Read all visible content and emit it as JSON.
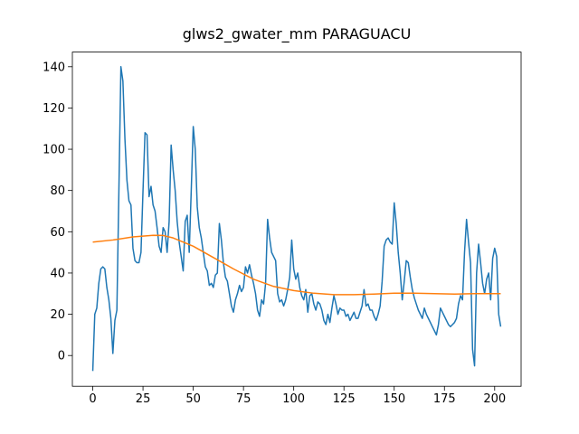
{
  "chart_data": {
    "type": "line",
    "title": "glws2_gwater_mm PARAGUACU",
    "xlim": [
      -10.15,
      213.15
    ],
    "xticks": [
      0,
      25,
      50,
      75,
      100,
      125,
      150,
      175,
      200
    ],
    "ylim": [
      -14.9,
      147.1
    ],
    "yticks": [
      0,
      20,
      40,
      60,
      80,
      100,
      120,
      140
    ],
    "series": [
      {
        "color": "#1f77b4",
        "x": [
          0,
          1,
          2,
          3,
          4,
          5,
          6,
          7,
          8,
          9,
          10,
          11,
          12,
          13,
          14,
          15,
          16,
          17,
          18,
          19,
          20,
          21,
          22,
          23,
          24,
          25,
          26,
          27,
          28,
          29,
          30,
          31,
          32,
          33,
          34,
          35,
          36,
          37,
          38,
          39,
          40,
          41,
          42,
          43,
          44,
          45,
          46,
          47,
          48,
          49,
          50,
          51,
          52,
          53,
          54,
          55,
          56,
          57,
          58,
          59,
          60,
          61,
          62,
          63,
          64,
          65,
          66,
          67,
          68,
          69,
          70,
          71,
          72,
          73,
          74,
          75,
          76,
          77,
          78,
          79,
          80,
          81,
          82,
          83,
          84,
          85,
          86,
          87,
          88,
          89,
          90,
          91,
          92,
          93,
          94,
          95,
          96,
          97,
          98,
          99,
          100,
          101,
          102,
          103,
          104,
          105,
          106,
          107,
          108,
          109,
          110,
          111,
          112,
          113,
          114,
          115,
          116,
          117,
          118,
          119,
          120,
          121,
          122,
          123,
          124,
          125,
          126,
          127,
          128,
          129,
          130,
          131,
          132,
          133,
          134,
          135,
          136,
          137,
          138,
          139,
          140,
          141,
          142,
          143,
          144,
          145,
          146,
          147,
          148,
          149,
          150,
          151,
          152,
          153,
          154,
          155,
          156,
          157,
          158,
          159,
          160,
          161,
          162,
          163,
          164,
          165,
          166,
          167,
          168,
          169,
          170,
          171,
          172,
          173,
          174,
          175,
          176,
          177,
          178,
          179,
          180,
          181,
          182,
          183,
          184,
          185,
          186,
          187,
          188,
          189,
          190,
          191,
          192,
          193,
          194,
          195,
          196,
          197,
          198,
          199,
          200,
          201,
          202,
          203
        ],
        "values": [
          -7.5,
          20,
          23,
          35,
          42,
          43,
          42,
          33,
          27,
          18,
          1,
          17,
          22,
          80,
          140,
          133,
          105,
          85,
          75,
          73,
          52,
          46,
          45,
          45,
          50,
          80,
          108,
          107,
          77,
          82,
          73,
          70,
          62,
          53,
          50,
          62,
          60,
          50,
          65,
          102,
          90,
          80,
          65,
          55,
          48,
          41,
          65,
          68,
          50,
          80,
          111,
          100,
          72,
          62,
          57,
          50,
          43,
          41,
          34,
          35,
          33,
          39,
          40,
          64,
          56,
          45,
          38,
          36,
          30,
          24,
          21,
          27,
          30,
          34,
          31,
          33,
          43,
          40,
          44,
          39,
          35,
          30,
          22,
          19,
          27,
          25,
          35,
          66,
          57,
          50,
          48,
          46,
          30,
          26,
          27,
          24,
          27,
          32,
          38,
          56,
          42,
          37,
          40,
          33,
          29,
          27,
          32,
          21,
          29,
          30,
          25,
          22,
          26,
          25,
          22,
          17,
          15,
          20,
          16,
          23,
          29,
          25,
          20,
          23,
          22,
          22,
          19,
          20,
          17,
          19,
          21,
          18,
          18,
          21,
          24,
          32,
          24,
          25,
          22,
          22,
          19,
          17,
          20,
          24,
          36,
          53,
          56,
          57,
          55,
          54,
          74,
          64,
          50,
          40,
          27,
          36,
          46,
          45,
          38,
          32,
          28,
          25,
          22,
          20,
          18,
          23,
          20,
          18,
          16,
          14,
          12,
          10,
          15,
          23,
          21,
          19,
          17,
          15,
          14,
          15,
          16,
          18,
          25,
          29,
          27,
          50,
          66,
          55,
          45,
          3,
          -5,
          40,
          54,
          45,
          35,
          30,
          37,
          40,
          27,
          47,
          52,
          48,
          20,
          14
        ]
      },
      {
        "color": "#ff7f0e",
        "x": [
          0,
          10,
          20,
          30,
          35,
          40,
          50,
          60,
          70,
          80,
          90,
          100,
          110,
          120,
          130,
          140,
          150,
          160,
          170,
          180,
          190,
          203
        ],
        "values": [
          55,
          56,
          57.5,
          58.3,
          58.2,
          57,
          53,
          47.5,
          42,
          37,
          33.5,
          31.5,
          30.2,
          29.5,
          29.5,
          29.8,
          30.2,
          30.2,
          30,
          29.8,
          30,
          30
        ]
      }
    ]
  }
}
